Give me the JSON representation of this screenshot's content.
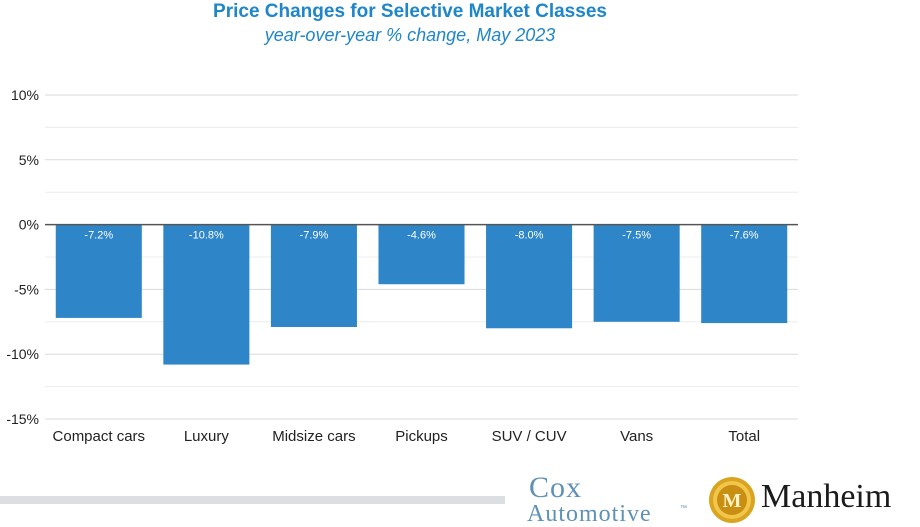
{
  "chart_data": {
    "type": "bar",
    "title": "Price Changes for Selective Market Classes",
    "subtitle": "year-over-year % change, May 2023",
    "categories": [
      "Compact cars",
      "Luxury",
      "Midsize cars",
      "Pickups",
      "SUV / CUV",
      "Vans",
      "Total"
    ],
    "values": [
      -7.2,
      -10.8,
      -7.9,
      -4.6,
      -8.0,
      -7.5,
      -7.6
    ],
    "data_labels": [
      "-7.2%",
      "-10.8%",
      "-7.9%",
      "-4.6%",
      "-8.0%",
      "-7.5%",
      "-7.6%"
    ],
    "yticks": [
      10,
      5,
      0,
      -5,
      -10,
      -15
    ],
    "ytick_labels": [
      "10%",
      "5%",
      "0%",
      "-5%",
      "-10%",
      "-15%"
    ],
    "ylim": [
      -15,
      10
    ],
    "grid": true,
    "bar_color": "#2e86c9",
    "xlabel": "",
    "ylabel": ""
  },
  "logos": {
    "cox_line1": "Cox",
    "cox_line2": "Automotive",
    "cox_tm": "™",
    "manheim": "Manheim",
    "seal_letter": "M"
  }
}
